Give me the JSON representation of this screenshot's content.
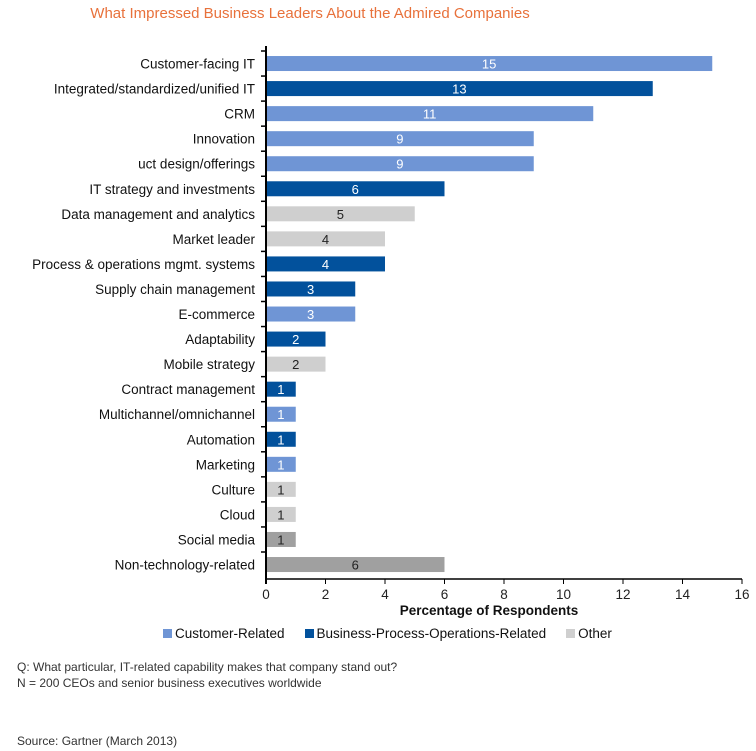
{
  "chart_data": {
    "type": "bar",
    "orientation": "horizontal",
    "title": "What Impressed Business Leaders About the Admired Companies",
    "xlabel": "Percentage of Respondents",
    "ylabel": "",
    "xlim": [
      0,
      16
    ],
    "xticks": [
      0,
      2,
      4,
      6,
      8,
      10,
      12,
      14,
      16
    ],
    "grid": false,
    "legend_position": "bottom",
    "categories": [
      "Customer-facing IT",
      "Integrated/standardized/unified IT",
      "CRM",
      "Innovation",
      "uct design/offerings",
      "IT strategy and investments",
      "Data management and analytics",
      "Market leader",
      "Process & operations mgmt. systems",
      "Supply chain management",
      "E-commerce",
      "Adaptability",
      "Mobile strategy",
      "Contract management",
      "Multichannel/omnichannel",
      "Automation",
      "Marketing",
      "Culture",
      "Cloud",
      "Social media",
      "Non-technology-related"
    ],
    "values": [
      15,
      13,
      11,
      9,
      9,
      6,
      5,
      4,
      4,
      3,
      3,
      2,
      2,
      1,
      1,
      1,
      1,
      1,
      1,
      1,
      6
    ],
    "groups": [
      "customer",
      "business",
      "customer",
      "customer",
      "customer",
      "business",
      "other",
      "other",
      "business",
      "business",
      "customer",
      "business",
      "other",
      "business",
      "customer",
      "business",
      "customer",
      "other",
      "other",
      "other-dark",
      "other-dark"
    ],
    "legend": [
      {
        "key": "customer",
        "label": "Customer-Related"
      },
      {
        "key": "business",
        "label": "Business-Process-Operations-Related"
      },
      {
        "key": "other",
        "label": "Other"
      }
    ],
    "colors": {
      "customer": "#6f95d5",
      "business": "#02519c",
      "other": "#cfcfcf",
      "other-dark": "#a0a0a0",
      "title": "#e8713b"
    }
  },
  "notes": {
    "question": "Q: What particular, IT-related capability makes that company stand out?",
    "sample": "N = 200 CEOs and senior business executives worldwide",
    "source": "Source: Gartner (March 2013)"
  }
}
